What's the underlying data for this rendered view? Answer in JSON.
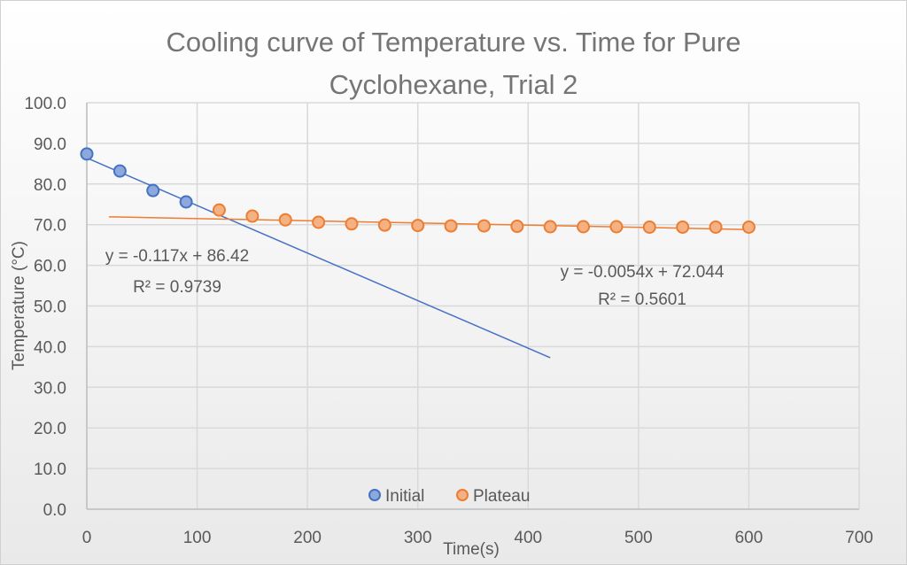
{
  "chart_data": {
    "type": "scatter",
    "title": "Cooling curve of Temperature vs. Time for Pure Cyclohexane, Trial 2",
    "title_lines": [
      "Cooling curve of Temperature vs. Time for Pure",
      "Cyclohexane, Trial 2"
    ],
    "xlabel": "Time(s)",
    "ylabel": "Temperature (°C)",
    "xlim": [
      0,
      700
    ],
    "ylim": [
      0,
      100
    ],
    "xticks": [
      0,
      100,
      200,
      300,
      400,
      500,
      600,
      700
    ],
    "yticks": [
      "0.0",
      "10.0",
      "20.0",
      "30.0",
      "40.0",
      "50.0",
      "60.0",
      "70.0",
      "80.0",
      "90.0",
      "100.0"
    ],
    "grid": true,
    "legend": "bottom",
    "series": [
      {
        "name": "Initial",
        "color": "#4472C4",
        "fill": "#8FA8DC",
        "x": [
          0,
          30,
          60,
          90
        ],
        "y": [
          87.4,
          83.2,
          78.4,
          75.6
        ],
        "trendline": {
          "slope": -0.117,
          "intercept": 86.42,
          "x_range": [
            0,
            420
          ],
          "equation": "y = -0.117x + 86.42",
          "r2": "R² = 0.9739"
        }
      },
      {
        "name": "Plateau",
        "color": "#ED7D31",
        "fill": "#F4B183",
        "x": [
          120,
          150,
          180,
          210,
          240,
          270,
          300,
          330,
          360,
          390,
          420,
          450,
          480,
          510,
          540,
          570,
          600
        ],
        "y": [
          73.6,
          72.1,
          71.2,
          70.6,
          70.2,
          69.9,
          69.8,
          69.7,
          69.7,
          69.6,
          69.5,
          69.5,
          69.5,
          69.4,
          69.4,
          69.4,
          69.4
        ],
        "trendline": {
          "slope": -0.0054,
          "intercept": 72.044,
          "x_range": [
            20,
            600
          ],
          "equation": "y = -0.0054x + 72.044",
          "r2": "R² = 0.5601"
        }
      }
    ]
  }
}
